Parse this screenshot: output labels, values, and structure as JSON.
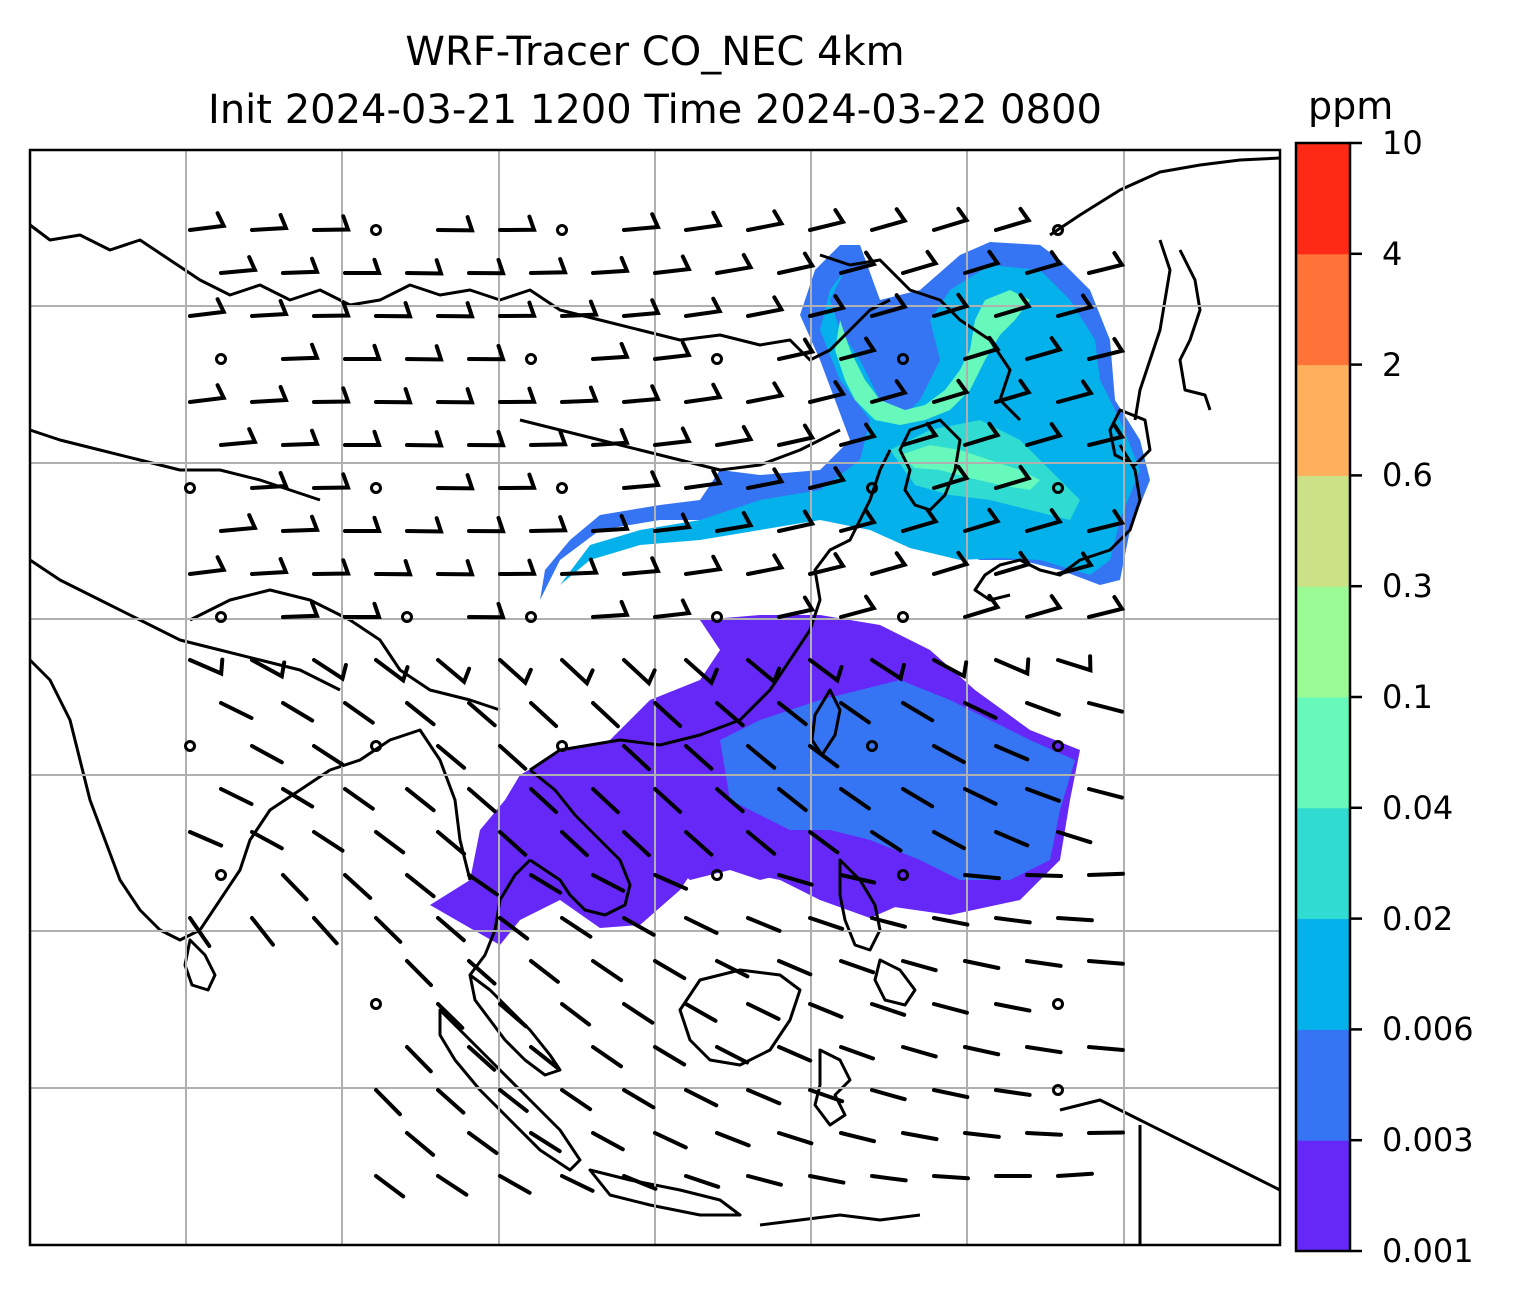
{
  "title": {
    "line1": "WRF-Tracer CO_NEC 4km",
    "line2": "Init 2024-03-21 1200 Time 2024-03-22 0800"
  },
  "colorbar": {
    "unit": "ppm",
    "levels": [
      "0.001",
      "0.003",
      "0.006",
      "0.02",
      "0.04",
      "0.1",
      "0.3",
      "0.6",
      "2",
      "4",
      "10"
    ],
    "colors": [
      "#6528f7",
      "#3574f2",
      "#05b1ea",
      "#30dbd2",
      "#66f9bb",
      "#9afa94",
      "#cce186",
      "#ffb05c",
      "#ff7339",
      "#ff2a16"
    ]
  },
  "map": {
    "background": "#ffffff",
    "coastline_color": "#000000",
    "grid_color": "#b0b0b0",
    "plume_colors": {
      "level1": "#6528f7",
      "level2": "#3574f2",
      "level3": "#05b1ea",
      "level4": "#30dbd2",
      "level5": "#66f9bb"
    }
  }
}
